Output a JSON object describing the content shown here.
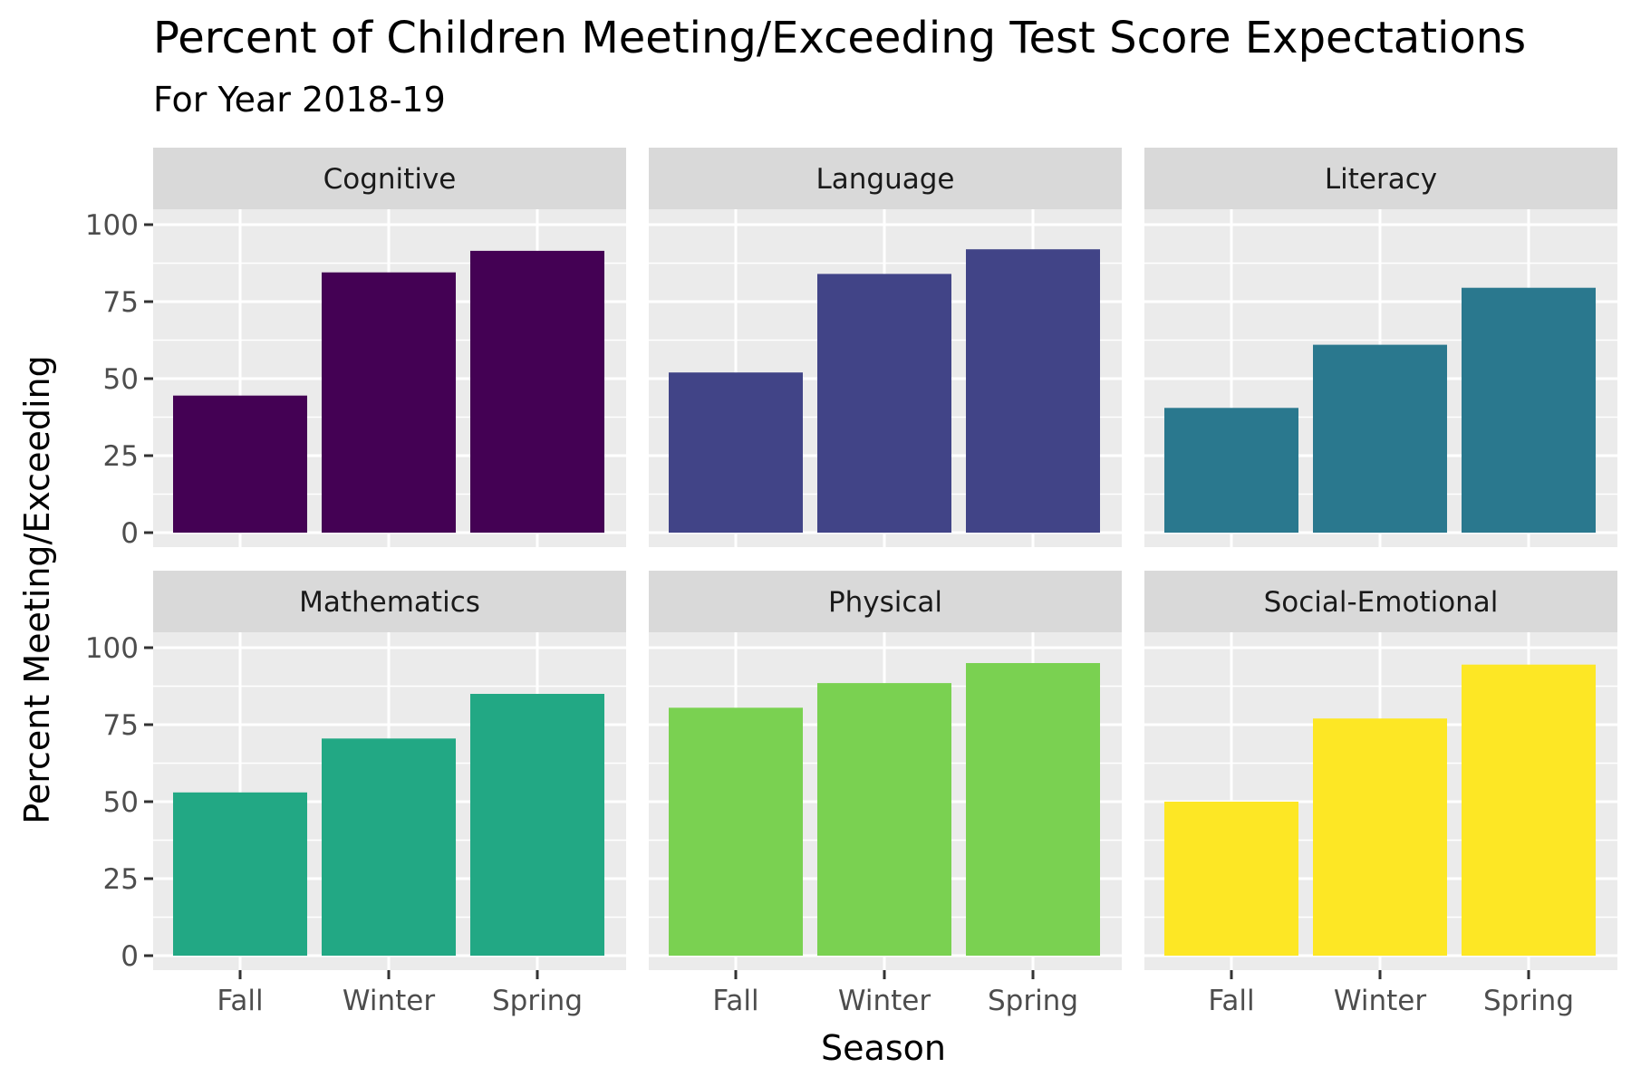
{
  "chart_data": {
    "type": "bar",
    "title": "Percent of Children Meeting/Exceeding Test Score Expectations",
    "subtitle": "For Year 2018-19",
    "xlabel": "Season",
    "ylabel": "Percent Meeting/Exceeding",
    "categories": [
      "Fall",
      "Winter",
      "Spring"
    ],
    "y_ticks": [
      "0",
      "25",
      "50",
      "75",
      "100"
    ],
    "ylim": [
      0,
      100
    ],
    "grid": true,
    "facets": [
      {
        "name": "Cognitive",
        "color": "#440154",
        "values": [
          44.5,
          84.5,
          91.5
        ]
      },
      {
        "name": "Language",
        "color": "#414487",
        "values": [
          52,
          84,
          92
        ]
      },
      {
        "name": "Literacy",
        "color": "#2A788E",
        "values": [
          40.5,
          61,
          79.5
        ]
      },
      {
        "name": "Mathematics",
        "color": "#22A884",
        "values": [
          53,
          70.5,
          85
        ]
      },
      {
        "name": "Physical",
        "color": "#7AD151",
        "values": [
          80.5,
          88.5,
          95
        ]
      },
      {
        "name": "Social-Emotional",
        "color": "#FDE725",
        "values": [
          50,
          77,
          94.5
        ]
      }
    ]
  }
}
